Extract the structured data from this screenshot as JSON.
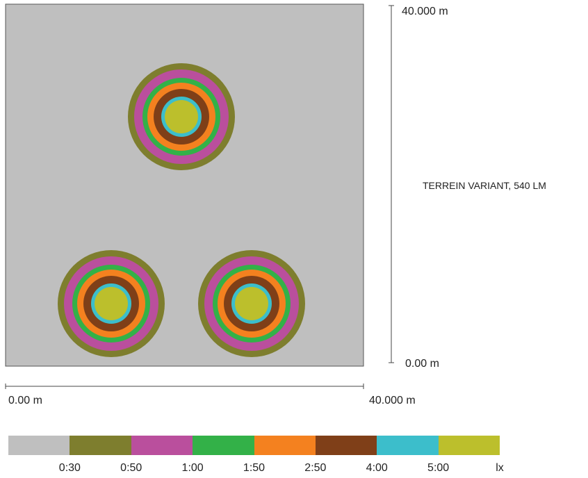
{
  "title": "TERREIN VARIANT, 540 LM",
  "axes": {
    "x_start": "0.00 m",
    "x_end": "40.000 m",
    "y_top": "40.000 m",
    "y_bottom": "0.00 m"
  },
  "background_color": "#bfbfbf",
  "legend": {
    "colors": [
      "#bfbfbf",
      "#7e7e2e",
      "#ba4f9d",
      "#33b148",
      "#f4811f",
      "#7f3f18",
      "#3cbecb",
      "#bcbf2c"
    ],
    "labels": [
      "0:30",
      "0:50",
      "1:00",
      "1:50",
      "2:50",
      "4:00",
      "5:00",
      "lx"
    ]
  },
  "light_sources": [
    {
      "name": "top"
    },
    {
      "name": "bottom-left"
    },
    {
      "name": "bottom-right"
    }
  ]
}
